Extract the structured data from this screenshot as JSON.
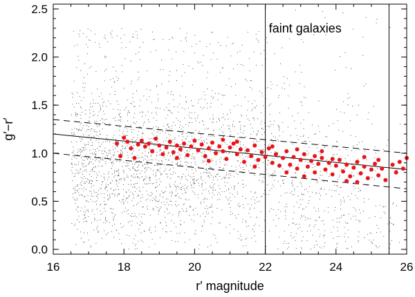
{
  "chart_data": {
    "type": "scatter",
    "title": "",
    "xlabel": "r′ magnitude",
    "ylabel": "g′−r′",
    "xlim": [
      16,
      26
    ],
    "ylim": [
      -0.05,
      2.55
    ],
    "xticks": [
      "16",
      "18",
      "20",
      "22",
      "24",
      "26"
    ],
    "yticks": [
      "0.0",
      "0.5",
      "1.0",
      "1.5",
      "2.0",
      "2.5"
    ],
    "annotation": "faint galaxies",
    "vertical_lines_x": [
      22.0,
      25.5
    ],
    "red_sequence_fit": {
      "style": "solid",
      "points": [
        [
          16.0,
          1.2
        ],
        [
          26.0,
          0.83
        ]
      ]
    },
    "red_sequence_bounds": [
      {
        "style": "dashed",
        "points": [
          [
            16.0,
            1.35
          ],
          [
            26.0,
            1.0
          ]
        ]
      },
      {
        "style": "dashed",
        "points": [
          [
            16.0,
            1.0
          ],
          [
            26.0,
            0.63
          ]
        ]
      }
    ],
    "series": [
      {
        "color": "#e8141a",
        "marker": "filled-circle",
        "points": [
          [
            17.8,
            1.1
          ],
          [
            17.9,
            0.97
          ],
          [
            18.0,
            1.16
          ],
          [
            18.1,
            1.12
          ],
          [
            18.2,
            1.05
          ],
          [
            18.3,
            0.95
          ],
          [
            18.4,
            1.09
          ],
          [
            18.5,
            1.13
          ],
          [
            18.6,
            1.07
          ],
          [
            18.7,
            1.1
          ],
          [
            18.8,
            1.02
          ],
          [
            18.9,
            1.15
          ],
          [
            19.0,
            1.08
          ],
          [
            19.1,
            0.99
          ],
          [
            19.2,
            1.06
          ],
          [
            19.3,
            1.12
          ],
          [
            19.4,
            1.01
          ],
          [
            19.5,
            1.08
          ],
          [
            19.6,
            1.04
          ],
          [
            19.7,
            1.1
          ],
          [
            19.8,
            0.98
          ],
          [
            19.9,
            1.07
          ],
          [
            20.0,
            1.13
          ],
          [
            20.1,
            1.03
          ],
          [
            20.2,
            1.09
          ],
          [
            20.3,
            0.97
          ],
          [
            20.4,
            1.05
          ],
          [
            20.5,
            1.11
          ],
          [
            20.6,
            1.0
          ],
          [
            20.7,
            1.07
          ],
          [
            20.8,
            1.02
          ],
          [
            20.9,
            0.94
          ],
          [
            21.0,
            1.06
          ],
          [
            21.1,
            1.1
          ],
          [
            21.2,
            0.99
          ],
          [
            21.3,
            1.04
          ],
          [
            21.4,
            0.91
          ],
          [
            21.5,
            1.03
          ],
          [
            21.6,
            0.97
          ],
          [
            21.7,
            1.08
          ],
          [
            21.8,
            0.93
          ],
          [
            21.9,
            1.01
          ],
          [
            22.0,
            0.96
          ],
          [
            22.1,
            1.05
          ],
          [
            22.2,
            0.9
          ],
          [
            22.3,
            0.99
          ],
          [
            22.4,
            0.87
          ],
          [
            22.5,
            0.95
          ],
          [
            22.6,
            1.02
          ],
          [
            22.7,
            0.88
          ],
          [
            22.8,
            0.96
          ],
          [
            22.9,
            0.84
          ],
          [
            23.0,
            0.93
          ],
          [
            23.1,
            0.99
          ],
          [
            23.2,
            0.86
          ],
          [
            23.3,
            0.92
          ],
          [
            23.4,
            0.8
          ],
          [
            23.5,
            0.89
          ],
          [
            23.6,
            0.95
          ],
          [
            23.7,
            0.83
          ],
          [
            23.8,
            0.9
          ],
          [
            23.9,
            0.78
          ],
          [
            24.0,
            0.87
          ],
          [
            24.1,
            0.93
          ],
          [
            24.2,
            0.81
          ],
          [
            24.3,
            0.88
          ],
          [
            24.4,
            0.76
          ],
          [
            24.5,
            0.85
          ],
          [
            24.6,
            0.91
          ],
          [
            24.7,
            0.79
          ],
          [
            24.8,
            0.86
          ],
          [
            24.9,
            0.74
          ],
          [
            25.0,
            0.83
          ],
          [
            25.1,
            0.89
          ],
          [
            25.2,
            0.77
          ],
          [
            25.3,
            0.84
          ],
          [
            25.4,
            0.72
          ],
          [
            25.6,
            0.88
          ],
          [
            25.7,
            0.8
          ],
          [
            25.8,
            0.91
          ],
          [
            25.9,
            0.84
          ],
          [
            26.0,
            0.95
          ],
          [
            20.4,
            0.92
          ],
          [
            21.2,
            1.12
          ],
          [
            22.2,
            1.07
          ],
          [
            23.1,
            0.76
          ],
          [
            23.6,
            1.02
          ],
          [
            24.3,
            0.71
          ],
          [
            24.8,
            0.96
          ],
          [
            22.9,
            1.04
          ],
          [
            21.7,
            0.86
          ],
          [
            20.8,
            1.14
          ],
          [
            19.5,
            0.95
          ],
          [
            23.4,
            0.97
          ],
          [
            24.6,
            0.7
          ],
          [
            25.2,
            0.93
          ],
          [
            22.6,
            0.8
          ],
          [
            23.9,
            0.94
          ]
        ]
      }
    ],
    "background_points": {
      "color": "#000000",
      "marker": "dot",
      "count": 3500,
      "x_range": [
        16,
        26
      ],
      "y_range": [
        0,
        2.55
      ]
    }
  }
}
